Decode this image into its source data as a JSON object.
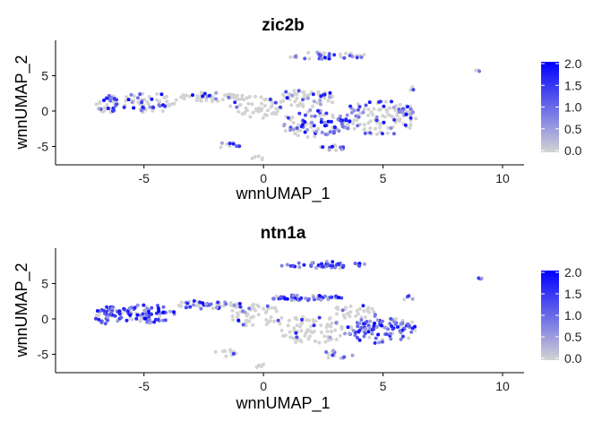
{
  "chart_data": [
    {
      "type": "scatter",
      "title": "zic2b",
      "xlabel": "wnnUMAP_1",
      "ylabel": "wnnUMAP_2",
      "xlim": [
        -8.7,
        10.9
      ],
      "ylim": [
        -7.6,
        10.0
      ],
      "xticks": [
        -5,
        0,
        5,
        10
      ],
      "yticks": [
        -5,
        0,
        5
      ],
      "grid": false,
      "color_scale": {
        "low": "#d3d3d3",
        "high": "#0000ff",
        "min": 0.0,
        "max": 2.0
      },
      "legend": {
        "position": "right",
        "ticks": [
          "2.0",
          "1.5",
          "1.0",
          "0.5",
          "0.0"
        ]
      },
      "clusters": [
        {
          "cx": -6.5,
          "cy": 1.0,
          "rx": 0.5,
          "ry": 1.3,
          "n": 40,
          "expr": 0.45
        },
        {
          "cx": -4.8,
          "cy": 1.2,
          "rx": 1.2,
          "ry": 1.4,
          "n": 60,
          "expr": 0.35
        },
        {
          "cx": -2.2,
          "cy": 2.0,
          "rx": 1.4,
          "ry": 0.7,
          "n": 50,
          "expr": 0.15
        },
        {
          "cx": -0.3,
          "cy": 0.5,
          "rx": 1.1,
          "ry": 1.6,
          "n": 50,
          "expr": 0.15
        },
        {
          "cx": 1.7,
          "cy": 1.8,
          "rx": 1.5,
          "ry": 1.2,
          "n": 60,
          "expr": 0.25
        },
        {
          "cx": 2.2,
          "cy": -1.8,
          "rx": 1.5,
          "ry": 2.0,
          "n": 90,
          "expr": 0.6
        },
        {
          "cx": 4.8,
          "cy": -1.0,
          "rx": 1.6,
          "ry": 2.5,
          "n": 100,
          "expr": 0.4
        },
        {
          "cx": 5.6,
          "cy": 0.0,
          "rx": 0.8,
          "ry": 1.0,
          "n": 30,
          "expr": 0.2
        },
        {
          "cx": -1.5,
          "cy": -4.8,
          "rx": 0.6,
          "ry": 0.5,
          "n": 10,
          "expr": 0.5
        },
        {
          "cx": 2.8,
          "cy": -5.2,
          "rx": 0.6,
          "ry": 0.5,
          "n": 12,
          "expr": 0.7
        },
        {
          "cx": -0.2,
          "cy": -6.6,
          "rx": 0.3,
          "ry": 0.3,
          "n": 5,
          "expr": 0.1
        },
        {
          "cx": 2.6,
          "cy": 7.8,
          "rx": 1.7,
          "ry": 0.5,
          "n": 40,
          "expr": 0.5
        },
        {
          "cx": 6.2,
          "cy": 3.2,
          "rx": 0.2,
          "ry": 0.3,
          "n": 3,
          "expr": 0.6
        },
        {
          "cx": 9.0,
          "cy": 5.7,
          "rx": 0.15,
          "ry": 0.1,
          "n": 3,
          "expr": 0.3
        }
      ]
    },
    {
      "type": "scatter",
      "title": "ntn1a",
      "xlabel": "wnnUMAP_1",
      "ylabel": "wnnUMAP_2",
      "xlim": [
        -8.7,
        10.9
      ],
      "ylim": [
        -7.6,
        10.0
      ],
      "xticks": [
        -5,
        0,
        5,
        10
      ],
      "yticks": [
        -5,
        0,
        5
      ],
      "grid": false,
      "color_scale": {
        "low": "#d3d3d3",
        "high": "#0000ff",
        "min": 0.0,
        "max": 2.0
      },
      "legend": {
        "position": "right",
        "ticks": [
          "2.0",
          "1.5",
          "1.0",
          "0.5",
          "0.0"
        ]
      },
      "clusters": [
        {
          "cx": -6.5,
          "cy": 0.5,
          "rx": 0.6,
          "ry": 1.2,
          "n": 40,
          "expr": 0.7
        },
        {
          "cx": -4.9,
          "cy": 0.7,
          "rx": 1.2,
          "ry": 1.3,
          "n": 70,
          "expr": 0.85
        },
        {
          "cx": -2.3,
          "cy": 2.0,
          "rx": 1.4,
          "ry": 0.6,
          "n": 50,
          "expr": 0.5
        },
        {
          "cx": -0.3,
          "cy": 0.5,
          "rx": 1.1,
          "ry": 1.6,
          "n": 50,
          "expr": 0.1
        },
        {
          "cx": 1.8,
          "cy": 3.0,
          "rx": 1.5,
          "ry": 0.4,
          "n": 50,
          "expr": 0.75
        },
        {
          "cx": 2.0,
          "cy": -1.5,
          "rx": 1.5,
          "ry": 2.0,
          "n": 80,
          "expr": 0.1
        },
        {
          "cx": 5.0,
          "cy": -1.5,
          "rx": 1.5,
          "ry": 2.0,
          "n": 100,
          "expr": 0.85
        },
        {
          "cx": 3.8,
          "cy": 1.0,
          "rx": 1.0,
          "ry": 1.0,
          "n": 30,
          "expr": 0.15
        },
        {
          "cx": -1.5,
          "cy": -4.8,
          "rx": 0.6,
          "ry": 0.5,
          "n": 10,
          "expr": 0.2
        },
        {
          "cx": 3.0,
          "cy": -5.0,
          "rx": 0.8,
          "ry": 0.6,
          "n": 12,
          "expr": 0.2
        },
        {
          "cx": -0.2,
          "cy": -6.6,
          "rx": 0.3,
          "ry": 0.3,
          "n": 5,
          "expr": 0.1
        },
        {
          "cx": 2.5,
          "cy": 7.6,
          "rx": 1.8,
          "ry": 0.5,
          "n": 45,
          "expr": 0.8
        },
        {
          "cx": 6.0,
          "cy": 3.0,
          "rx": 0.3,
          "ry": 0.4,
          "n": 4,
          "expr": 0.3
        },
        {
          "cx": 9.0,
          "cy": 5.7,
          "rx": 0.15,
          "ry": 0.1,
          "n": 3,
          "expr": 0.9
        }
      ]
    }
  ]
}
